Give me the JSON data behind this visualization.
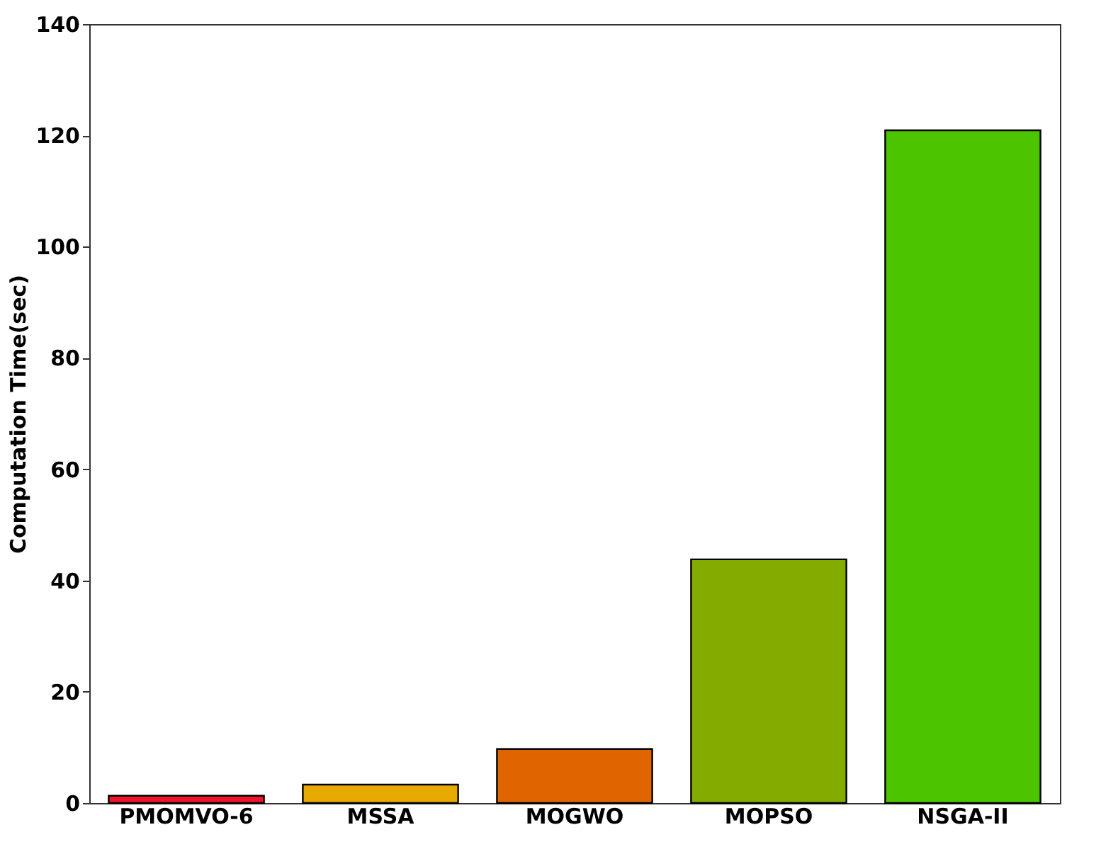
{
  "chart_data": {
    "type": "bar",
    "ylabel": "Computation Time(sec)",
    "categories": [
      "PMOMVO-6",
      "MSSA",
      "MOGWO",
      "MOPSO",
      "NSGA-II"
    ],
    "values": [
      1.3,
      3.3,
      9.7,
      43.8,
      120.9
    ],
    "colors": [
      "#f0142a",
      "#e8aa00",
      "#e06400",
      "#84ac00",
      "#4cc400"
    ],
    "ylim": [
      0,
      140
    ],
    "yticks": [
      0,
      20,
      40,
      60,
      80,
      100,
      120,
      140
    ],
    "grid": false
  }
}
